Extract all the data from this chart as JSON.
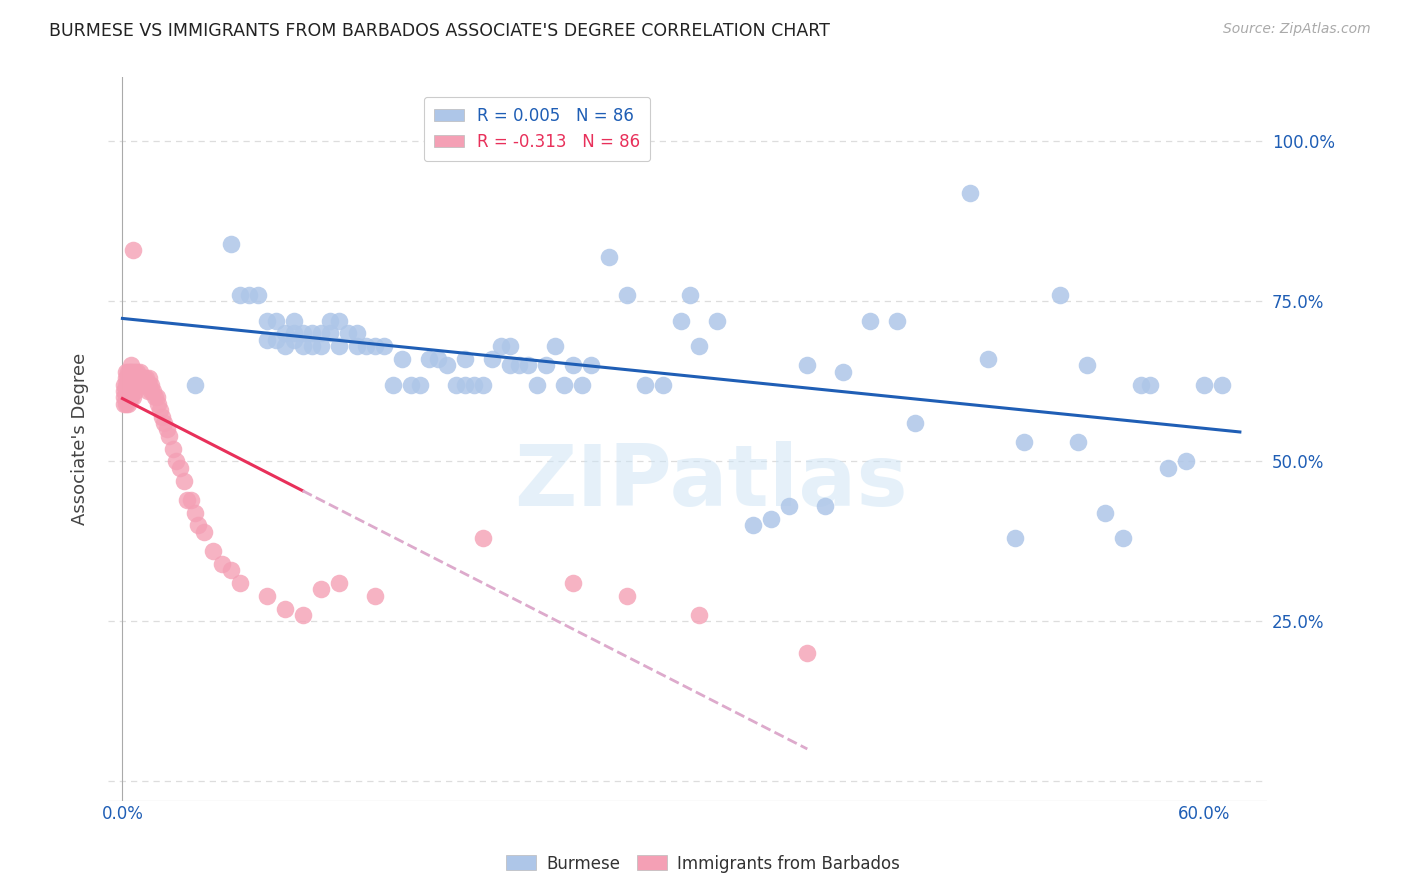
{
  "title": "BURMESE VS IMMIGRANTS FROM BARBADOS ASSOCIATE'S DEGREE CORRELATION CHART",
  "source": "Source: ZipAtlas.com",
  "ylabel_label": "Associate's Degree",
  "blue_color": "#aec6e8",
  "pink_color": "#f4a0b5",
  "trendline_blue_color": "#1f5eb5",
  "trendline_pink_color": "#e8305a",
  "trendline_pink_dashed_color": "#ddaacc",
  "legend_blue_text": "#1f5eb5",
  "legend_pink_text": "#e8305a",
  "blue_scatter": {
    "x": [
      0.04,
      0.06,
      0.065,
      0.07,
      0.075,
      0.08,
      0.08,
      0.085,
      0.085,
      0.09,
      0.09,
      0.095,
      0.095,
      0.095,
      0.1,
      0.1,
      0.105,
      0.105,
      0.11,
      0.11,
      0.115,
      0.115,
      0.12,
      0.12,
      0.125,
      0.13,
      0.13,
      0.135,
      0.14,
      0.145,
      0.15,
      0.155,
      0.16,
      0.165,
      0.17,
      0.175,
      0.18,
      0.185,
      0.19,
      0.19,
      0.195,
      0.2,
      0.205,
      0.21,
      0.215,
      0.215,
      0.22,
      0.225,
      0.23,
      0.235,
      0.24,
      0.245,
      0.25,
      0.255,
      0.26,
      0.27,
      0.28,
      0.29,
      0.3,
      0.31,
      0.315,
      0.32,
      0.33,
      0.35,
      0.36,
      0.37,
      0.38,
      0.39,
      0.4,
      0.415,
      0.43,
      0.44,
      0.47,
      0.48,
      0.495,
      0.5,
      0.52,
      0.53,
      0.535,
      0.545,
      0.555,
      0.565,
      0.57,
      0.58,
      0.59,
      0.6,
      0.61
    ],
    "y": [
      0.62,
      0.84,
      0.76,
      0.76,
      0.76,
      0.69,
      0.72,
      0.69,
      0.72,
      0.68,
      0.7,
      0.69,
      0.7,
      0.72,
      0.68,
      0.7,
      0.68,
      0.7,
      0.68,
      0.7,
      0.7,
      0.72,
      0.68,
      0.72,
      0.7,
      0.68,
      0.7,
      0.68,
      0.68,
      0.68,
      0.62,
      0.66,
      0.62,
      0.62,
      0.66,
      0.66,
      0.65,
      0.62,
      0.62,
      0.66,
      0.62,
      0.62,
      0.66,
      0.68,
      0.68,
      0.65,
      0.65,
      0.65,
      0.62,
      0.65,
      0.68,
      0.62,
      0.65,
      0.62,
      0.65,
      0.82,
      0.76,
      0.62,
      0.62,
      0.72,
      0.76,
      0.68,
      0.72,
      0.4,
      0.41,
      0.43,
      0.65,
      0.43,
      0.64,
      0.72,
      0.72,
      0.56,
      0.92,
      0.66,
      0.38,
      0.53,
      0.76,
      0.53,
      0.65,
      0.42,
      0.38,
      0.62,
      0.62,
      0.49,
      0.5,
      0.62,
      0.62
    ]
  },
  "pink_scatter": {
    "x": [
      0.001,
      0.001,
      0.001,
      0.001,
      0.002,
      0.002,
      0.002,
      0.002,
      0.002,
      0.002,
      0.003,
      0.003,
      0.003,
      0.003,
      0.003,
      0.003,
      0.004,
      0.004,
      0.004,
      0.004,
      0.004,
      0.005,
      0.005,
      0.005,
      0.005,
      0.005,
      0.005,
      0.006,
      0.006,
      0.006,
      0.006,
      0.007,
      0.007,
      0.007,
      0.007,
      0.008,
      0.008,
      0.008,
      0.009,
      0.009,
      0.01,
      0.01,
      0.01,
      0.011,
      0.011,
      0.012,
      0.012,
      0.013,
      0.013,
      0.014,
      0.015,
      0.015,
      0.016,
      0.016,
      0.017,
      0.018,
      0.019,
      0.02,
      0.021,
      0.022,
      0.023,
      0.025,
      0.026,
      0.028,
      0.03,
      0.032,
      0.034,
      0.036,
      0.038,
      0.04,
      0.042,
      0.045,
      0.05,
      0.055,
      0.06,
      0.065,
      0.08,
      0.09,
      0.1,
      0.11,
      0.12,
      0.14,
      0.2,
      0.25,
      0.28,
      0.32,
      0.38
    ],
    "y": [
      0.62,
      0.61,
      0.6,
      0.59,
      0.64,
      0.63,
      0.62,
      0.61,
      0.6,
      0.59,
      0.64,
      0.63,
      0.62,
      0.61,
      0.6,
      0.59,
      0.64,
      0.63,
      0.62,
      0.61,
      0.6,
      0.65,
      0.64,
      0.63,
      0.62,
      0.61,
      0.6,
      0.64,
      0.83,
      0.62,
      0.6,
      0.64,
      0.63,
      0.62,
      0.61,
      0.64,
      0.63,
      0.62,
      0.63,
      0.62,
      0.64,
      0.63,
      0.62,
      0.63,
      0.62,
      0.63,
      0.62,
      0.63,
      0.62,
      0.61,
      0.63,
      0.62,
      0.62,
      0.61,
      0.61,
      0.6,
      0.6,
      0.59,
      0.58,
      0.57,
      0.56,
      0.55,
      0.54,
      0.52,
      0.5,
      0.49,
      0.47,
      0.44,
      0.44,
      0.42,
      0.4,
      0.39,
      0.36,
      0.34,
      0.33,
      0.31,
      0.29,
      0.27,
      0.26,
      0.3,
      0.31,
      0.29,
      0.38,
      0.31,
      0.29,
      0.26,
      0.2
    ]
  },
  "watermark": "ZIPatlas",
  "background_color": "#ffffff",
  "grid_color": "#dddddd"
}
